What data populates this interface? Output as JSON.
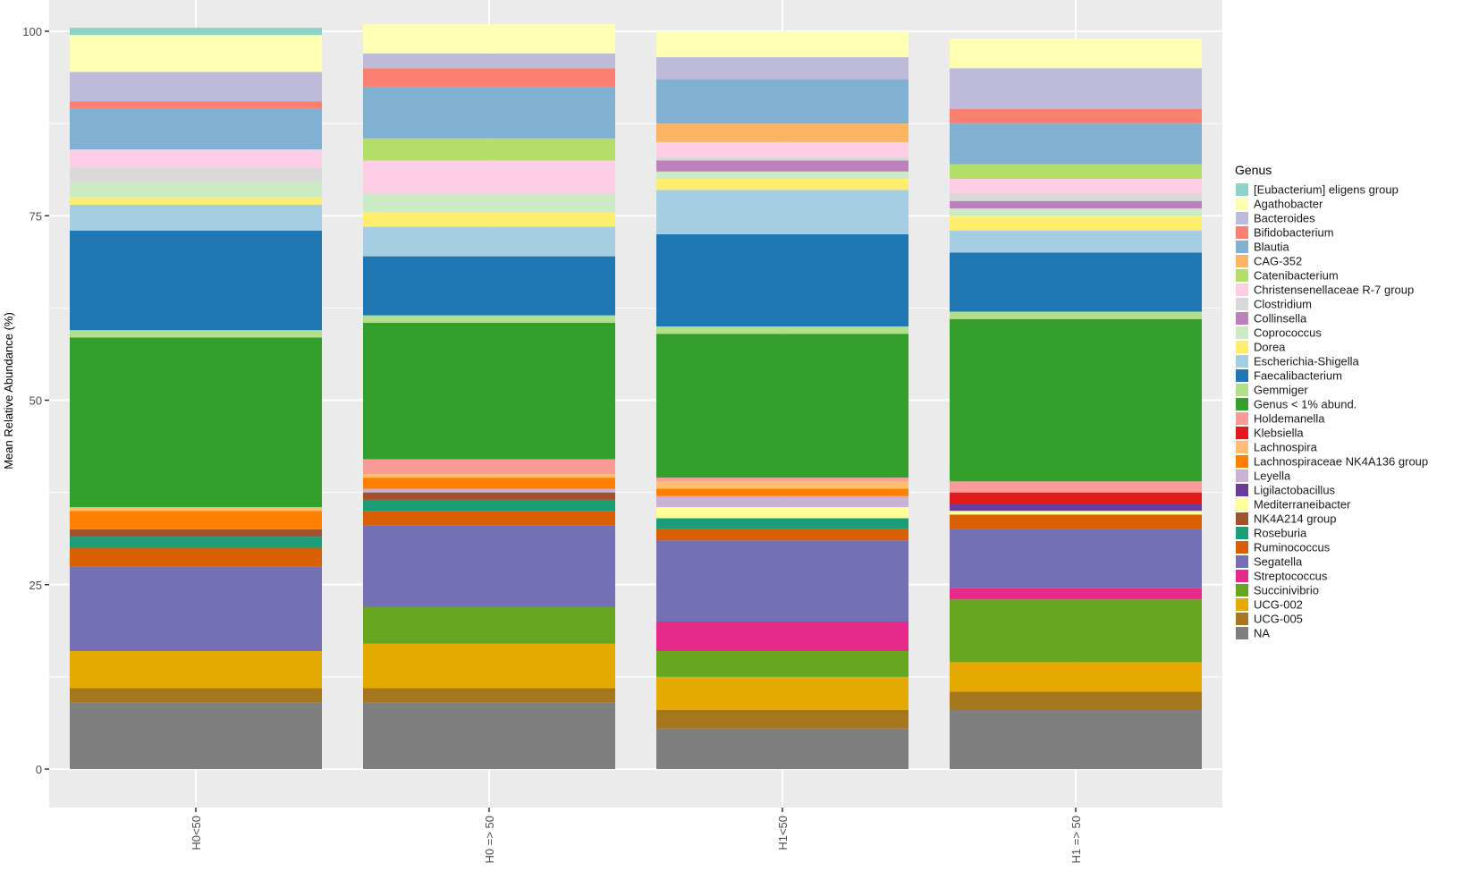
{
  "chart_data": {
    "type": "bar",
    "stacked": true,
    "ylabel": "Mean Relative Abundance (%)",
    "xlabel": "",
    "ylim": [
      0,
      100
    ],
    "yticks": [
      "0",
      "25",
      "50",
      "75",
      "100"
    ],
    "grid": true,
    "legend_title": "Genus",
    "legend_position": "right",
    "categories": [
      "H0<50",
      "H0 => 50",
      "H1<50",
      "H1 => 50"
    ],
    "series": [
      {
        "name": "NA",
        "color": "#7f7f7f",
        "values": [
          9.0,
          9.0,
          5.5,
          8.0
        ]
      },
      {
        "name": "UCG-005",
        "color": "#a6761d",
        "values": [
          2.0,
          2.0,
          2.5,
          2.5
        ]
      },
      {
        "name": "UCG-002",
        "color": "#e6ab02",
        "values": [
          5.0,
          6.0,
          4.5,
          4.0
        ]
      },
      {
        "name": "Succinivibrio",
        "color": "#66a61e",
        "values": [
          0.0,
          5.0,
          3.5,
          8.5
        ]
      },
      {
        "name": "Streptococcus",
        "color": "#e7298a",
        "values": [
          0.0,
          0.0,
          4.0,
          1.5
        ]
      },
      {
        "name": "Segatella",
        "color": "#7570b3",
        "values": [
          11.5,
          11.0,
          11.0,
          8.0
        ]
      },
      {
        "name": "Ruminococcus",
        "color": "#d95f02",
        "values": [
          2.5,
          2.0,
          1.5,
          2.0
        ]
      },
      {
        "name": "Roseburia",
        "color": "#1b9e77",
        "values": [
          1.5,
          1.5,
          1.5,
          0.0
        ]
      },
      {
        "name": "NK4A214 group",
        "color": "#a0522d",
        "values": [
          1.0,
          1.0,
          0.0,
          0.0
        ]
      },
      {
        "name": "Mediterraneibacter",
        "color": "#ffff99",
        "values": [
          0.0,
          0.0,
          1.5,
          0.5
        ]
      },
      {
        "name": "Ligilactobacillus",
        "color": "#6a3d9a",
        "values": [
          0.0,
          0.0,
          0.0,
          1.0
        ]
      },
      {
        "name": "Leyella",
        "color": "#cab2d6",
        "values": [
          0.0,
          0.5,
          1.5,
          0.0
        ]
      },
      {
        "name": "Lachnospiraceae NK4A136 group",
        "color": "#ff7f00",
        "values": [
          2.5,
          1.5,
          1.0,
          0.0
        ]
      },
      {
        "name": "Lachnospira",
        "color": "#fdbf6f",
        "values": [
          0.5,
          0.5,
          1.0,
          0.0
        ]
      },
      {
        "name": "Klebsiella",
        "color": "#e31a1c",
        "values": [
          0.0,
          0.0,
          0.0,
          1.5
        ]
      },
      {
        "name": "Holdemanella",
        "color": "#fb9a99",
        "values": [
          0.0,
          2.0,
          0.5,
          1.5
        ]
      },
      {
        "name": "Genus < 1% abund.",
        "color": "#33a02c",
        "values": [
          23.0,
          18.5,
          19.5,
          22.0
        ]
      },
      {
        "name": "Gemmiger",
        "color": "#b2df8a",
        "values": [
          1.0,
          1.0,
          1.0,
          1.0
        ]
      },
      {
        "name": "Faecalibacterium",
        "color": "#1f78b4",
        "values": [
          13.5,
          8.0,
          12.5,
          8.0
        ]
      },
      {
        "name": "Escherichia-Shigella",
        "color": "#a6cee3",
        "values": [
          3.5,
          4.0,
          6.0,
          3.0
        ]
      },
      {
        "name": "Dorea",
        "color": "#ffed6f",
        "values": [
          1.0,
          2.0,
          1.5,
          2.0
        ]
      },
      {
        "name": "Coprococcus",
        "color": "#ccebc5",
        "values": [
          2.0,
          2.5,
          1.0,
          1.0
        ]
      },
      {
        "name": "Collinsella",
        "color": "#bc80bd",
        "values": [
          0.0,
          0.0,
          1.5,
          1.0
        ]
      },
      {
        "name": "Clostridium",
        "color": "#d9d9d9",
        "values": [
          2.0,
          0.0,
          0.5,
          1.0
        ]
      },
      {
        "name": "Christensenellaceae R-7 group",
        "color": "#fccde5",
        "values": [
          2.5,
          4.5,
          2.0,
          2.0
        ]
      },
      {
        "name": "Catenibacterium",
        "color": "#b3de69",
        "values": [
          0.0,
          3.0,
          0.0,
          2.0
        ]
      },
      {
        "name": "CAG-352",
        "color": "#fdb462",
        "values": [
          0.0,
          0.0,
          2.5,
          0.0
        ]
      },
      {
        "name": "Blautia",
        "color": "#80b1d3",
        "values": [
          5.5,
          7.0,
          6.0,
          5.5
        ]
      },
      {
        "name": "Bifidobacterium",
        "color": "#fb8072",
        "values": [
          1.0,
          2.5,
          0.0,
          2.0
        ]
      },
      {
        "name": "Bacteroides",
        "color": "#bebada",
        "values": [
          4.0,
          2.0,
          3.0,
          5.5
        ]
      },
      {
        "name": "Agathobacter",
        "color": "#ffffb3",
        "values": [
          5.0,
          4.0,
          3.5,
          4.0
        ]
      },
      {
        "name": "[Eubacterium] eligens group",
        "color": "#8dd3c7",
        "values": [
          1.0,
          0.0,
          0.0,
          0.0
        ]
      }
    ],
    "legend_order": [
      "[Eubacterium] eligens group",
      "Agathobacter",
      "Bacteroides",
      "Bifidobacterium",
      "Blautia",
      "CAG-352",
      "Catenibacterium",
      "Christensenellaceae R-7 group",
      "Clostridium",
      "Collinsella",
      "Coprococcus",
      "Dorea",
      "Escherichia-Shigella",
      "Faecalibacterium",
      "Gemmiger",
      "Genus < 1% abund.",
      "Holdemanella",
      "Klebsiella",
      "Lachnospira",
      "Lachnospiraceae NK4A136 group",
      "Leyella",
      "Ligilactobacillus",
      "Mediterraneibacter",
      "NK4A214 group",
      "Roseburia",
      "Ruminococcus",
      "Segatella",
      "Streptococcus",
      "Succinivibrio",
      "UCG-002",
      "UCG-005",
      "NA"
    ]
  }
}
